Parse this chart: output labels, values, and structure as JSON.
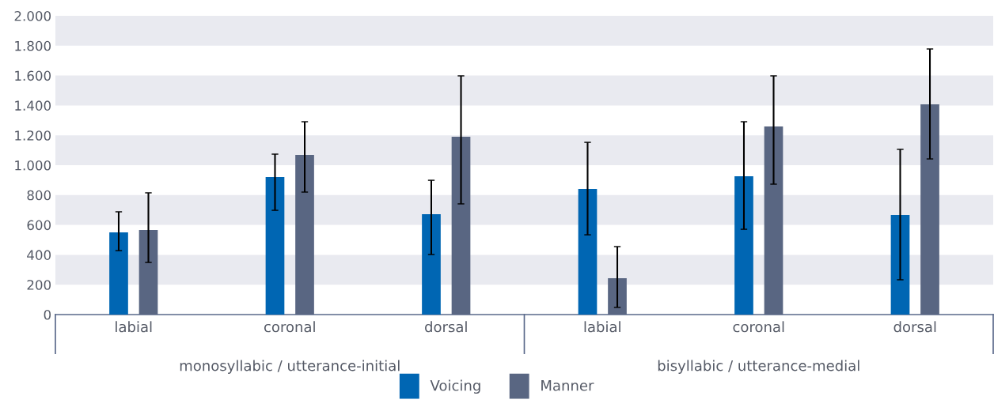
{
  "chart_data": {
    "type": "bar",
    "categories": [
      "labial",
      "coronal",
      "dorsal",
      "labial",
      "coronal",
      "dorsal"
    ],
    "series": [
      {
        "name": "Voicing",
        "color": "#0066b3",
        "values": [
          550,
          921,
          672,
          841,
          926,
          667
        ],
        "errors": [
          [
            428,
            688
          ],
          [
            698,
            1074
          ],
          [
            402,
            899
          ],
          [
            534,
            1153
          ],
          [
            571,
            1291
          ],
          [
            233,
            1106
          ]
        ]
      },
      {
        "name": "Manner",
        "color": "#596682",
        "values": [
          566,
          1069,
          1190,
          243,
          1259,
          1407
        ],
        "errors": [
          [
            349,
            815
          ],
          [
            820,
            1291
          ],
          [
            741,
            1598
          ],
          [
            48,
            455
          ],
          [
            873,
            1598
          ],
          [
            1042,
            1778
          ]
        ]
      }
    ],
    "ylim": [
      0,
      2000
    ],
    "yticks": [
      0,
      200,
      400,
      600,
      800,
      {
        "value": 1000,
        "label": "1.000"
      },
      {
        "value": 1200,
        "label": "1.200"
      },
      {
        "value": 1400,
        "label": "1.400"
      },
      {
        "value": 1600,
        "label": "1.600"
      },
      {
        "value": 1800,
        "label": "1.800"
      },
      {
        "value": 2000,
        "label": "2.000"
      }
    ],
    "annotations": [
      "monosyllabic / utterance-initial",
      "bisyllabic / utterance-medial"
    ],
    "bands": [
      {
        "axis": "y",
        "from": 200,
        "to": 400,
        "color": "#e9eaf0"
      },
      {
        "axis": "y",
        "from": 600,
        "to": 800,
        "color": "#e9eaf0"
      },
      {
        "axis": "y",
        "from": 1000,
        "to": 1200,
        "color": "#e9eaf0"
      },
      {
        "axis": "y",
        "from": 1400,
        "to": 1600,
        "color": "#e9eaf0"
      },
      {
        "axis": "y",
        "from": 1800,
        "to": 2000,
        "color": "#e9eaf0"
      }
    ],
    "legend": "bottom"
  }
}
